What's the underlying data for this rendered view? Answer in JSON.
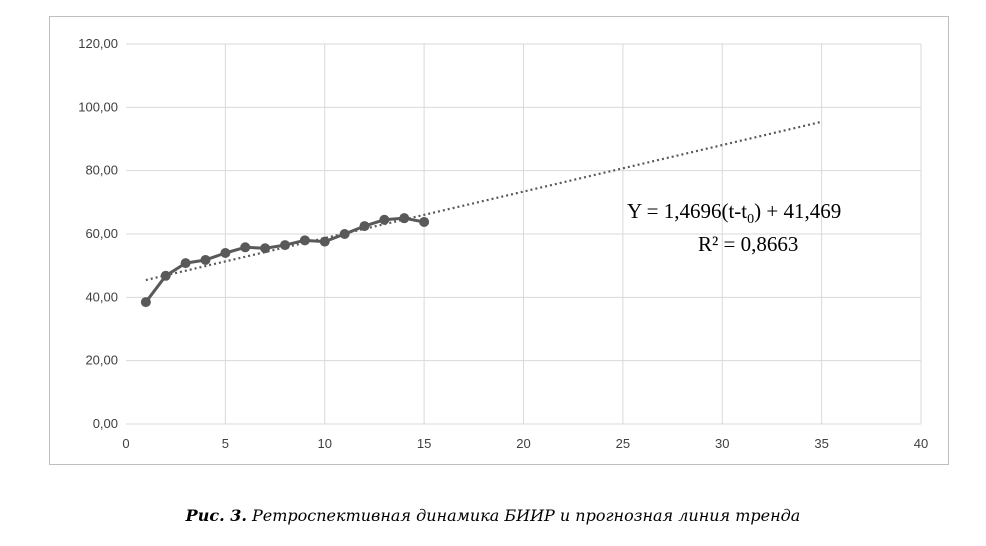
{
  "chart_data": {
    "type": "line",
    "x": [
      1,
      2,
      3,
      4,
      5,
      6,
      7,
      8,
      9,
      10,
      11,
      12,
      13,
      14,
      15
    ],
    "series": [
      {
        "values": [
          38.5,
          46.8,
          50.8,
          51.8,
          54.0,
          55.8,
          55.5,
          56.5,
          58.0,
          57.6,
          60.0,
          62.5,
          64.5,
          65.0,
          63.8
        ],
        "color": "#595959",
        "marker": "circle"
      }
    ],
    "trendline": {
      "type": "linear",
      "slope": 1.4696,
      "intercept": 44.0,
      "x_range": [
        1,
        35
      ],
      "style": "dotted",
      "color": "#595959"
    },
    "equation": {
      "prefix": "Y = 1,4696(t-t",
      "subscript": "0",
      "suffix": ")  + 41,469",
      "r2": "R² = 0,8663"
    },
    "xlim": [
      0,
      40
    ],
    "ylim": [
      0,
      120
    ],
    "x_ticks": [
      "0",
      "5",
      "10",
      "15",
      "20",
      "25",
      "30",
      "35",
      "40"
    ],
    "y_ticks": [
      "0,00",
      "20,00",
      "40,00",
      "60,00",
      "80,00",
      "100,00",
      "120,00"
    ],
    "grid": true,
    "legend": "none",
    "title": "",
    "xlabel": "",
    "ylabel": ""
  },
  "caption": {
    "prefix": "Рис. 3.",
    "text": " Ретроспективная динамика БИИР и прогнозная линия тренда"
  }
}
